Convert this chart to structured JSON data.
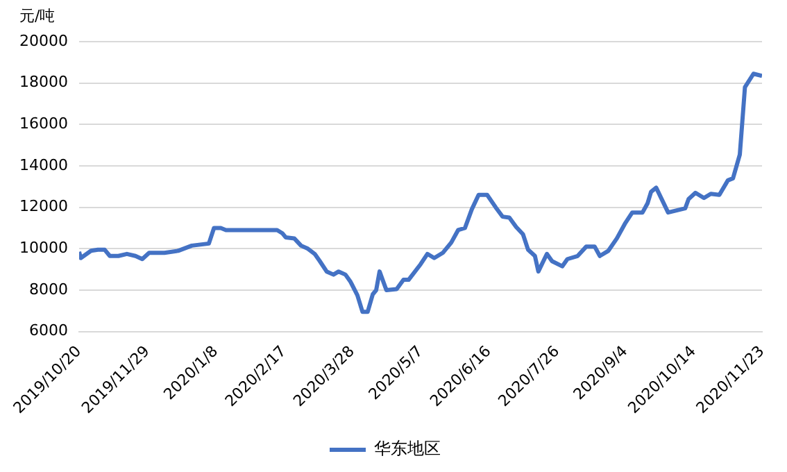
{
  "chart_data": {
    "type": "line",
    "ylabel": "元/吨",
    "x": [
      "2019-10-20",
      "2019-10-21",
      "2019-10-27",
      "2019-10-31",
      "2019-11-04",
      "2019-11-07",
      "2019-11-12",
      "2019-11-17",
      "2019-11-22",
      "2019-11-26",
      "2019-11-30",
      "2019-12-09",
      "2019-12-17",
      "2019-12-25",
      "2020-01-04",
      "2020-01-07",
      "2020-01-11",
      "2020-01-14",
      "2020-02-13",
      "2020-02-16",
      "2020-02-18",
      "2020-02-23",
      "2020-02-27",
      "2020-03-02",
      "2020-03-06",
      "2020-03-09",
      "2020-03-13",
      "2020-03-17",
      "2020-03-20",
      "2020-03-24",
      "2020-03-27",
      "2020-03-31",
      "2020-04-03",
      "2020-04-06",
      "2020-04-09",
      "2020-04-11",
      "2020-04-13",
      "2020-04-17",
      "2020-04-23",
      "2020-04-27",
      "2020-04-30",
      "2020-05-07",
      "2020-05-11",
      "2020-05-15",
      "2020-05-20",
      "2020-05-25",
      "2020-05-29",
      "2020-06-02",
      "2020-06-06",
      "2020-06-10",
      "2020-06-15",
      "2020-06-20",
      "2020-06-24",
      "2020-06-28",
      "2020-07-02",
      "2020-07-06",
      "2020-07-09",
      "2020-07-13",
      "2020-07-15",
      "2020-07-20",
      "2020-07-23",
      "2020-07-29",
      "2020-08-01",
      "2020-08-07",
      "2020-08-12",
      "2020-08-17",
      "2020-08-20",
      "2020-08-25",
      "2020-08-30",
      "2020-09-04",
      "2020-09-08",
      "2020-09-14",
      "2020-09-17",
      "2020-09-19",
      "2020-09-22",
      "2020-09-29",
      "2020-10-09",
      "2020-10-11",
      "2020-10-15",
      "2020-10-20",
      "2020-10-24",
      "2020-10-29",
      "2020-11-03",
      "2020-11-06",
      "2020-11-10",
      "2020-11-13",
      "2020-11-18",
      "2020-11-23"
    ],
    "series": [
      {
        "name": "华东地区",
        "color": "#4472c4",
        "values": [
          9850,
          9550,
          9900,
          9950,
          9950,
          9650,
          9650,
          9750,
          9650,
          9500,
          9800,
          9800,
          9900,
          10150,
          10250,
          11000,
          11000,
          10900,
          10900,
          10750,
          10550,
          10500,
          10150,
          10000,
          9750,
          9400,
          8900,
          8750,
          8900,
          8750,
          8400,
          7750,
          6950,
          6950,
          7800,
          8000,
          8900,
          8000,
          8050,
          8500,
          8500,
          9250,
          9750,
          9550,
          9800,
          10300,
          10900,
          11000,
          11900,
          12600,
          12600,
          12000,
          11550,
          11500,
          11050,
          10700,
          9950,
          9650,
          8900,
          9750,
          9400,
          9150,
          9500,
          9650,
          10100,
          10100,
          9650,
          9900,
          10500,
          11250,
          11750,
          11750,
          12200,
          12750,
          12950,
          11750,
          11950,
          12400,
          12700,
          12450,
          12650,
          12600,
          13300,
          13400,
          14550,
          17800,
          18450,
          18350
        ]
      }
    ],
    "xlim": [
      "2019-10-20",
      "2020-11-23"
    ],
    "xticks": [
      {
        "value": "2019-10-20",
        "label": "2019/10/20"
      },
      {
        "value": "2019-11-29",
        "label": "2019/11/29"
      },
      {
        "value": "2020-01-08",
        "label": "2020/1/8"
      },
      {
        "value": "2020-02-17",
        "label": "2020/2/17"
      },
      {
        "value": "2020-03-28",
        "label": "2020/3/28"
      },
      {
        "value": "2020-05-07",
        "label": "2020/5/7"
      },
      {
        "value": "2020-06-16",
        "label": "2020/6/16"
      },
      {
        "value": "2020-07-26",
        "label": "2020/7/26"
      },
      {
        "value": "2020-09-04",
        "label": "2020/9/4"
      },
      {
        "value": "2020-10-14",
        "label": "2020/10/14"
      },
      {
        "value": "2020-11-23",
        "label": "2020/11/23"
      }
    ],
    "ylim": [
      6000,
      20000
    ],
    "yticks": [
      6000,
      8000,
      10000,
      12000,
      14000,
      16000,
      18000,
      20000
    ],
    "grid": "y",
    "legend": "bottom",
    "marker": "none",
    "line_style": "solid"
  }
}
